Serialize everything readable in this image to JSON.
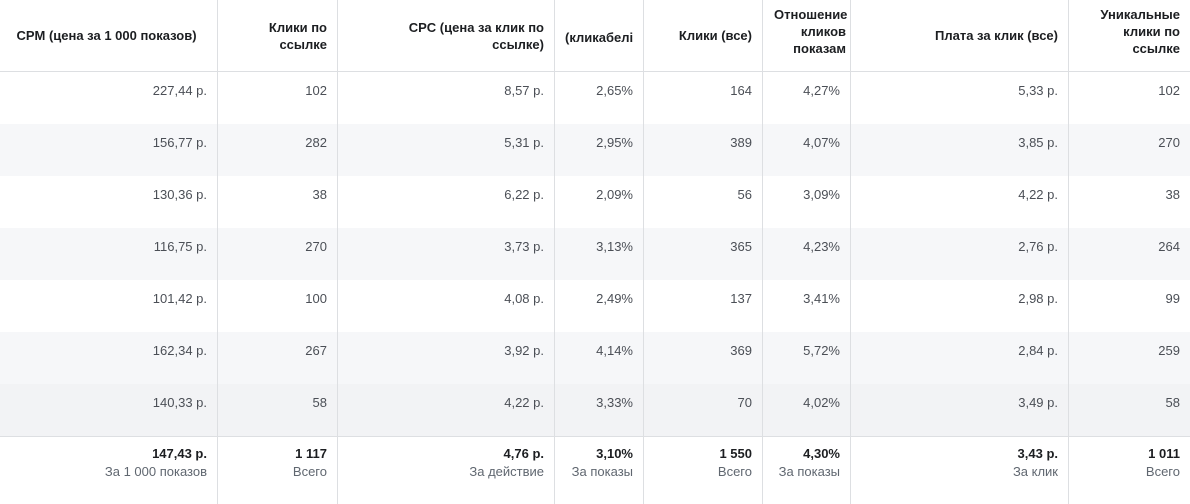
{
  "columns": [
    "CPM (цена за 1 000 показов)",
    "Клики по ссылке",
    "CPC (цена за клик по ссылке)",
    "(кликабелі",
    "Клики (все)",
    "Отношение кликов показам",
    "Плата за клик (все)",
    "Уникальные клики по ссылке"
  ],
  "rows": [
    [
      "227,44 р.",
      "102",
      "8,57 р.",
      "2,65%",
      "164",
      "4,27%",
      "5,33 р.",
      "102"
    ],
    [
      "156,77 р.",
      "282",
      "5,31 р.",
      "2,95%",
      "389",
      "4,07%",
      "3,85 р.",
      "270"
    ],
    [
      "130,36 р.",
      "38",
      "6,22 р.",
      "2,09%",
      "56",
      "3,09%",
      "4,22 р.",
      "38"
    ],
    [
      "116,75 р.",
      "270",
      "3,73 р.",
      "3,13%",
      "365",
      "4,23%",
      "2,76 р.",
      "264"
    ],
    [
      "101,42 р.",
      "100",
      "4,08 р.",
      "2,49%",
      "137",
      "3,41%",
      "2,98 р.",
      "99"
    ],
    [
      "162,34 р.",
      "267",
      "3,92 р.",
      "4,14%",
      "369",
      "5,72%",
      "2,84 р.",
      "259"
    ],
    [
      "140,33 р.",
      "58",
      "4,22 р.",
      "3,33%",
      "70",
      "4,02%",
      "3,49 р.",
      "58"
    ]
  ],
  "totals": [
    {
      "value": "147,43 р.",
      "label": "За 1 000 показов"
    },
    {
      "value": "1 117",
      "label": "Всего"
    },
    {
      "value": "4,76 р.",
      "label": "За действие"
    },
    {
      "value": "3,10%",
      "label": "За показы"
    },
    {
      "value": "1 550",
      "label": "Всего"
    },
    {
      "value": "4,30%",
      "label": "За показы"
    },
    {
      "value": "3,43 р.",
      "label": "За клик"
    },
    {
      "value": "1 011",
      "label": "Всего"
    }
  ]
}
